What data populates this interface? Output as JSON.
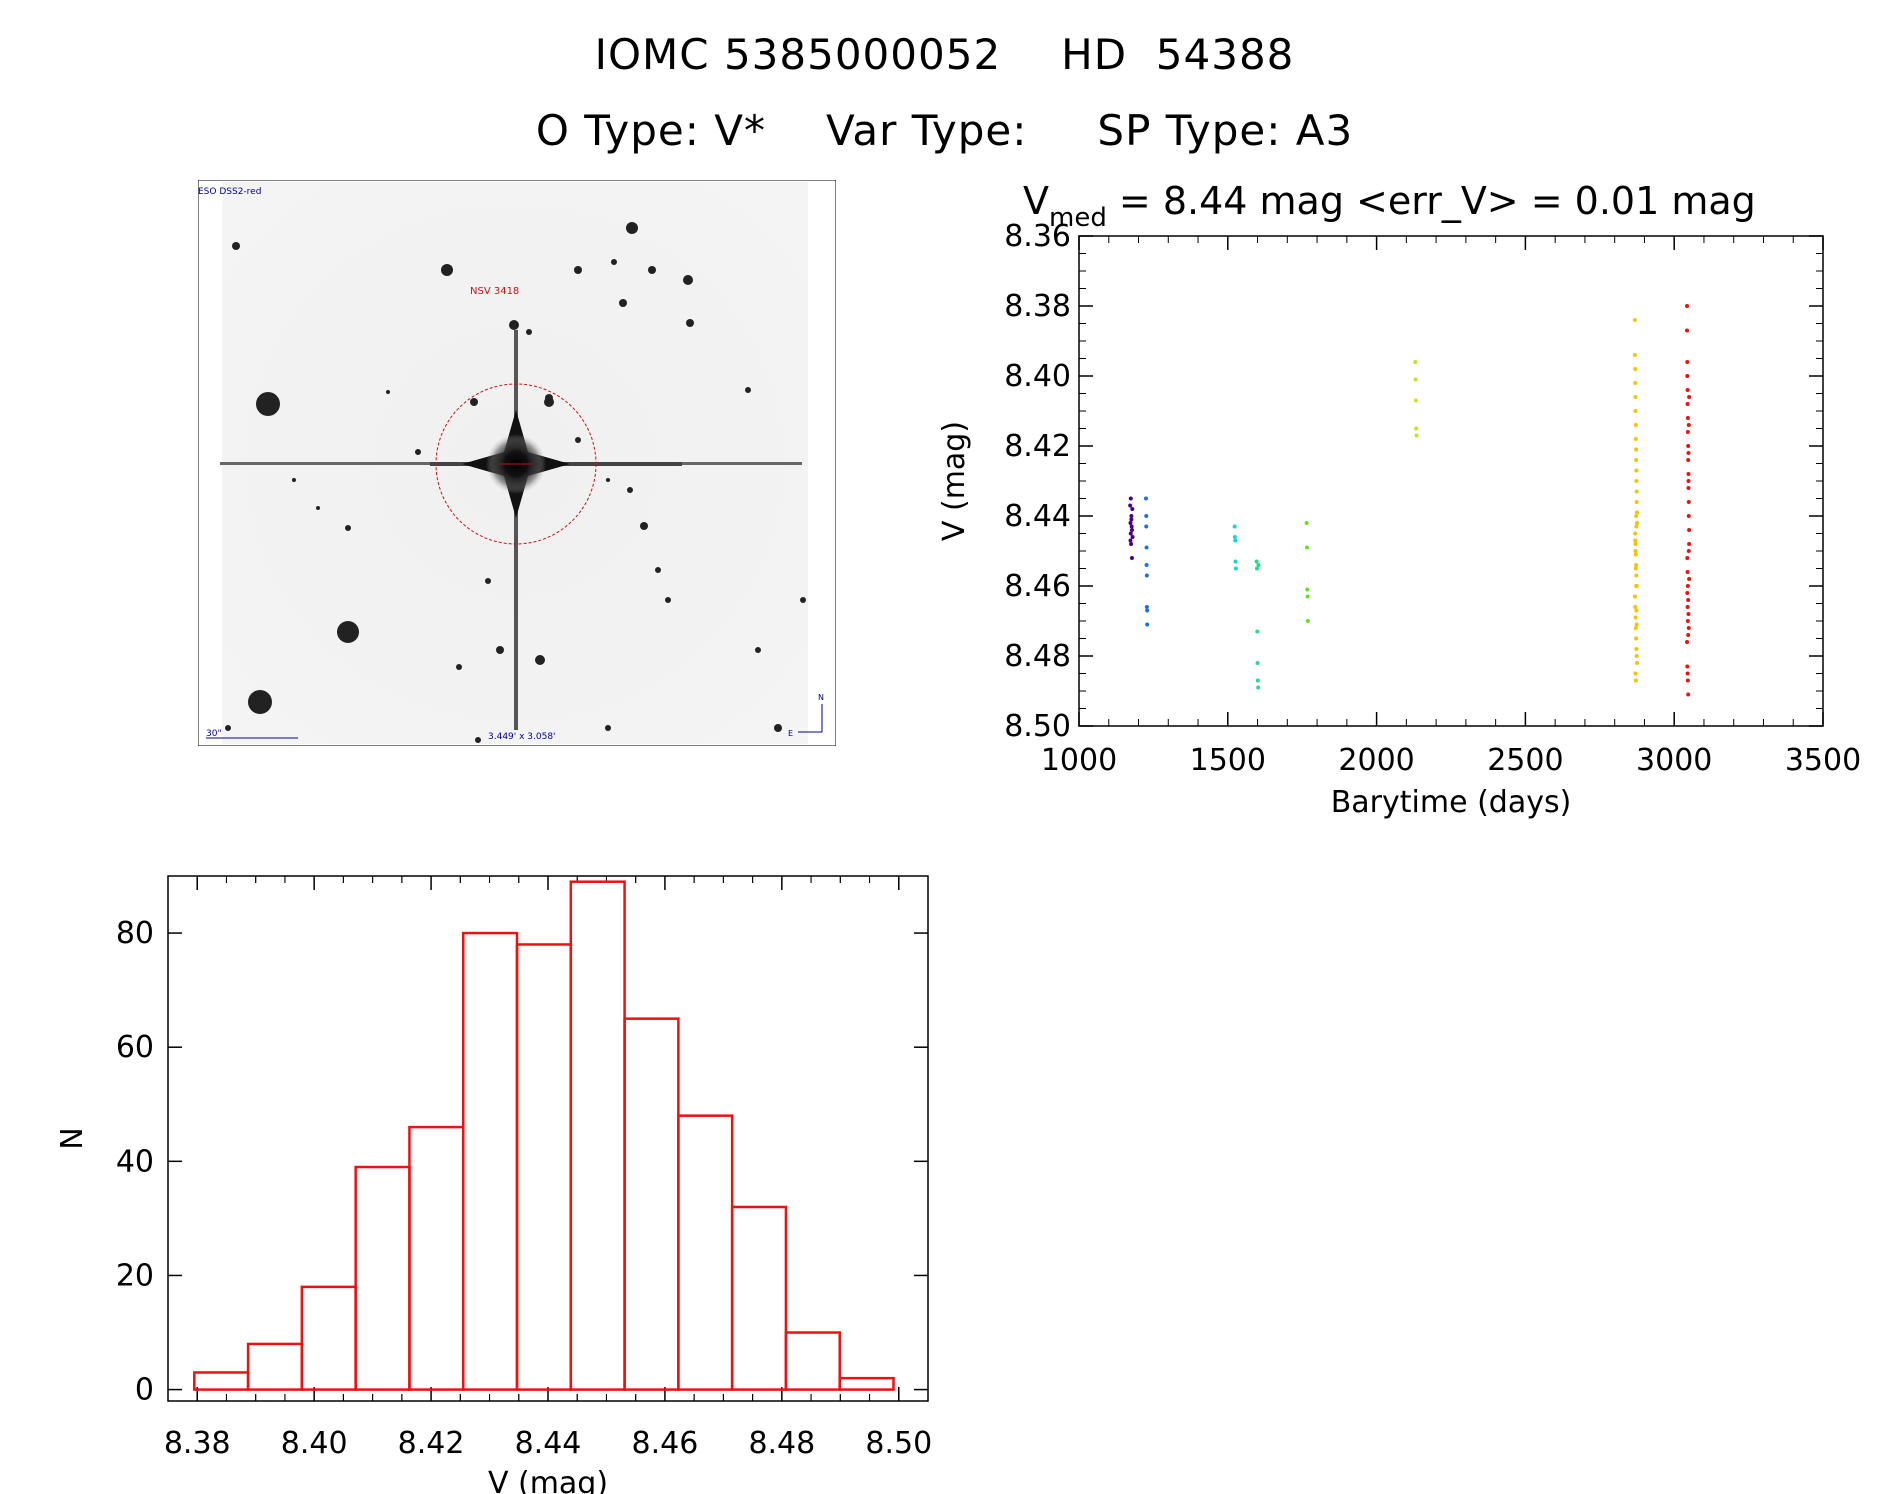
{
  "header": {
    "id_label": "IOMC 5385000052",
    "hd_label": "HD  54388",
    "otype": "O Type: V*",
    "vartype": "Var Type:",
    "sptype": "SP Type: A3"
  },
  "image_panel": {
    "survey_label": "ESO DSS2-red",
    "target_label": "NSV 3418",
    "scale_label": "30\"",
    "fov_label": "3.449' x 3.058'",
    "north_label": "N",
    "east_label": "E"
  },
  "colors": {
    "hist": "#ee1111",
    "lc_series": [
      "#4b0082",
      "#1e6fe0",
      "#19d3d3",
      "#22dd88",
      "#66dd22",
      "#c8e020",
      "#f5c400",
      "#ee1111"
    ],
    "circle": "#c0141a"
  },
  "chart_data": [
    {
      "type": "scatter",
      "title_prefix": "V",
      "title_sub": "med",
      "title_rest": " = 8.44 mag <err_V> = 0.01 mag",
      "xlabel": "Barytime (days)",
      "ylabel": "V (mag)",
      "xlim": [
        1000,
        3500
      ],
      "ylim": [
        8.36,
        8.5
      ],
      "y_inverted": true,
      "xticks": [
        "1000",
        "1500",
        "2000",
        "2500",
        "3000",
        "3500"
      ],
      "yticks": [
        "8.36",
        "8.38",
        "8.40",
        "8.42",
        "8.44",
        "8.46",
        "8.48",
        "8.50"
      ],
      "series": [
        {
          "x": [
            1172,
            1173,
            1174,
            1175,
            1176,
            1177,
            1178,
            1179,
            1180,
            1173,
            1176,
            1178,
            1174
          ],
          "y": [
            8.437,
            8.442,
            8.445,
            8.448,
            8.44,
            8.443,
            8.452,
            8.438,
            8.446,
            8.447,
            8.441,
            8.444,
            8.435
          ]
        },
        {
          "x": [
            1225,
            1226,
            1226,
            1227,
            1227,
            1228,
            1228,
            1229,
            1229
          ],
          "y": [
            8.435,
            8.44,
            8.443,
            8.449,
            8.454,
            8.457,
            8.466,
            8.467,
            8.471
          ]
        },
        {
          "x": [
            1523,
            1524,
            1525,
            1526,
            1527
          ],
          "y": [
            8.443,
            8.446,
            8.447,
            8.453,
            8.455
          ]
        },
        {
          "x": [
            1597,
            1598,
            1599,
            1600,
            1601,
            1602,
            1603
          ],
          "y": [
            8.453,
            8.455,
            8.473,
            8.482,
            8.487,
            8.489,
            8.454
          ]
        },
        {
          "x": [
            1765,
            1766,
            1767,
            1768,
            1769
          ],
          "y": [
            8.442,
            8.449,
            8.461,
            8.463,
            8.47
          ]
        },
        {
          "x": [
            2130,
            2131,
            2132,
            2133,
            2134
          ],
          "y": [
            8.396,
            8.401,
            8.407,
            8.415,
            8.417
          ]
        },
        {
          "x": [
            2868,
            2868,
            2869,
            2869,
            2870,
            2870,
            2871,
            2871,
            2872,
            2872,
            2873,
            2873,
            2874,
            2874,
            2875,
            2875,
            2869,
            2870,
            2871,
            2872,
            2873,
            2874,
            2868,
            2869,
            2870,
            2871,
            2872,
            2873,
            2874,
            2875,
            2870,
            2871,
            2872,
            2873,
            2869,
            2870,
            2871,
            2872,
            2873,
            2874
          ],
          "y": [
            8.384,
            8.394,
            8.398,
            8.402,
            8.406,
            8.41,
            8.414,
            8.418,
            8.421,
            8.424,
            8.427,
            8.43,
            8.433,
            8.436,
            8.439,
            8.442,
            8.445,
            8.448,
            8.451,
            8.454,
            8.457,
            8.46,
            8.463,
            8.466,
            8.469,
            8.472,
            8.475,
            8.478,
            8.48,
            8.482,
            8.485,
            8.487,
            8.44,
            8.443,
            8.447,
            8.45,
            8.455,
            8.46,
            8.467,
            8.471
          ]
        },
        {
          "x": [
            3043,
            3043,
            3044,
            3044,
            3045,
            3045,
            3046,
            3046,
            3047,
            3047,
            3048,
            3048,
            3049,
            3049,
            3050,
            3050,
            3044,
            3045,
            3046,
            3047,
            3048,
            3049,
            3043,
            3044,
            3045,
            3046,
            3047,
            3048,
            3049,
            3050,
            3044,
            3045,
            3046,
            3047,
            3048,
            3049,
            3050
          ],
          "y": [
            8.38,
            8.387,
            8.396,
            8.4,
            8.404,
            8.408,
            8.412,
            8.416,
            8.42,
            8.424,
            8.428,
            8.432,
            8.436,
            8.44,
            8.444,
            8.448,
            8.452,
            8.456,
            8.46,
            8.464,
            8.468,
            8.472,
            8.476,
            8.483,
            8.485,
            8.487,
            8.491,
            8.43,
            8.45,
            8.458,
            8.462,
            8.466,
            8.47,
            8.474,
            8.422,
            8.414,
            8.406
          ]
        }
      ]
    },
    {
      "type": "bar",
      "style": "step-histogram",
      "xlabel": "V (mag)",
      "ylabel": "N",
      "xlim": [
        8.375,
        8.505
      ],
      "ylim": [
        -2,
        90
      ],
      "xticks": [
        "8.38",
        "8.40",
        "8.42",
        "8.44",
        "8.46",
        "8.48",
        "8.50"
      ],
      "yticks": [
        "0",
        "20",
        "40",
        "60",
        "80"
      ],
      "bin_width": 0.0092,
      "bin_left_edges": [
        8.3795,
        8.3887,
        8.3979,
        8.4071,
        8.4163,
        8.4255,
        8.4347,
        8.4439,
        8.4531,
        8.4623,
        8.4715,
        8.4807,
        8.4899
      ],
      "values": [
        3,
        8,
        18,
        39,
        46,
        80,
        78,
        89,
        65,
        48,
        32,
        10,
        2
      ]
    }
  ]
}
